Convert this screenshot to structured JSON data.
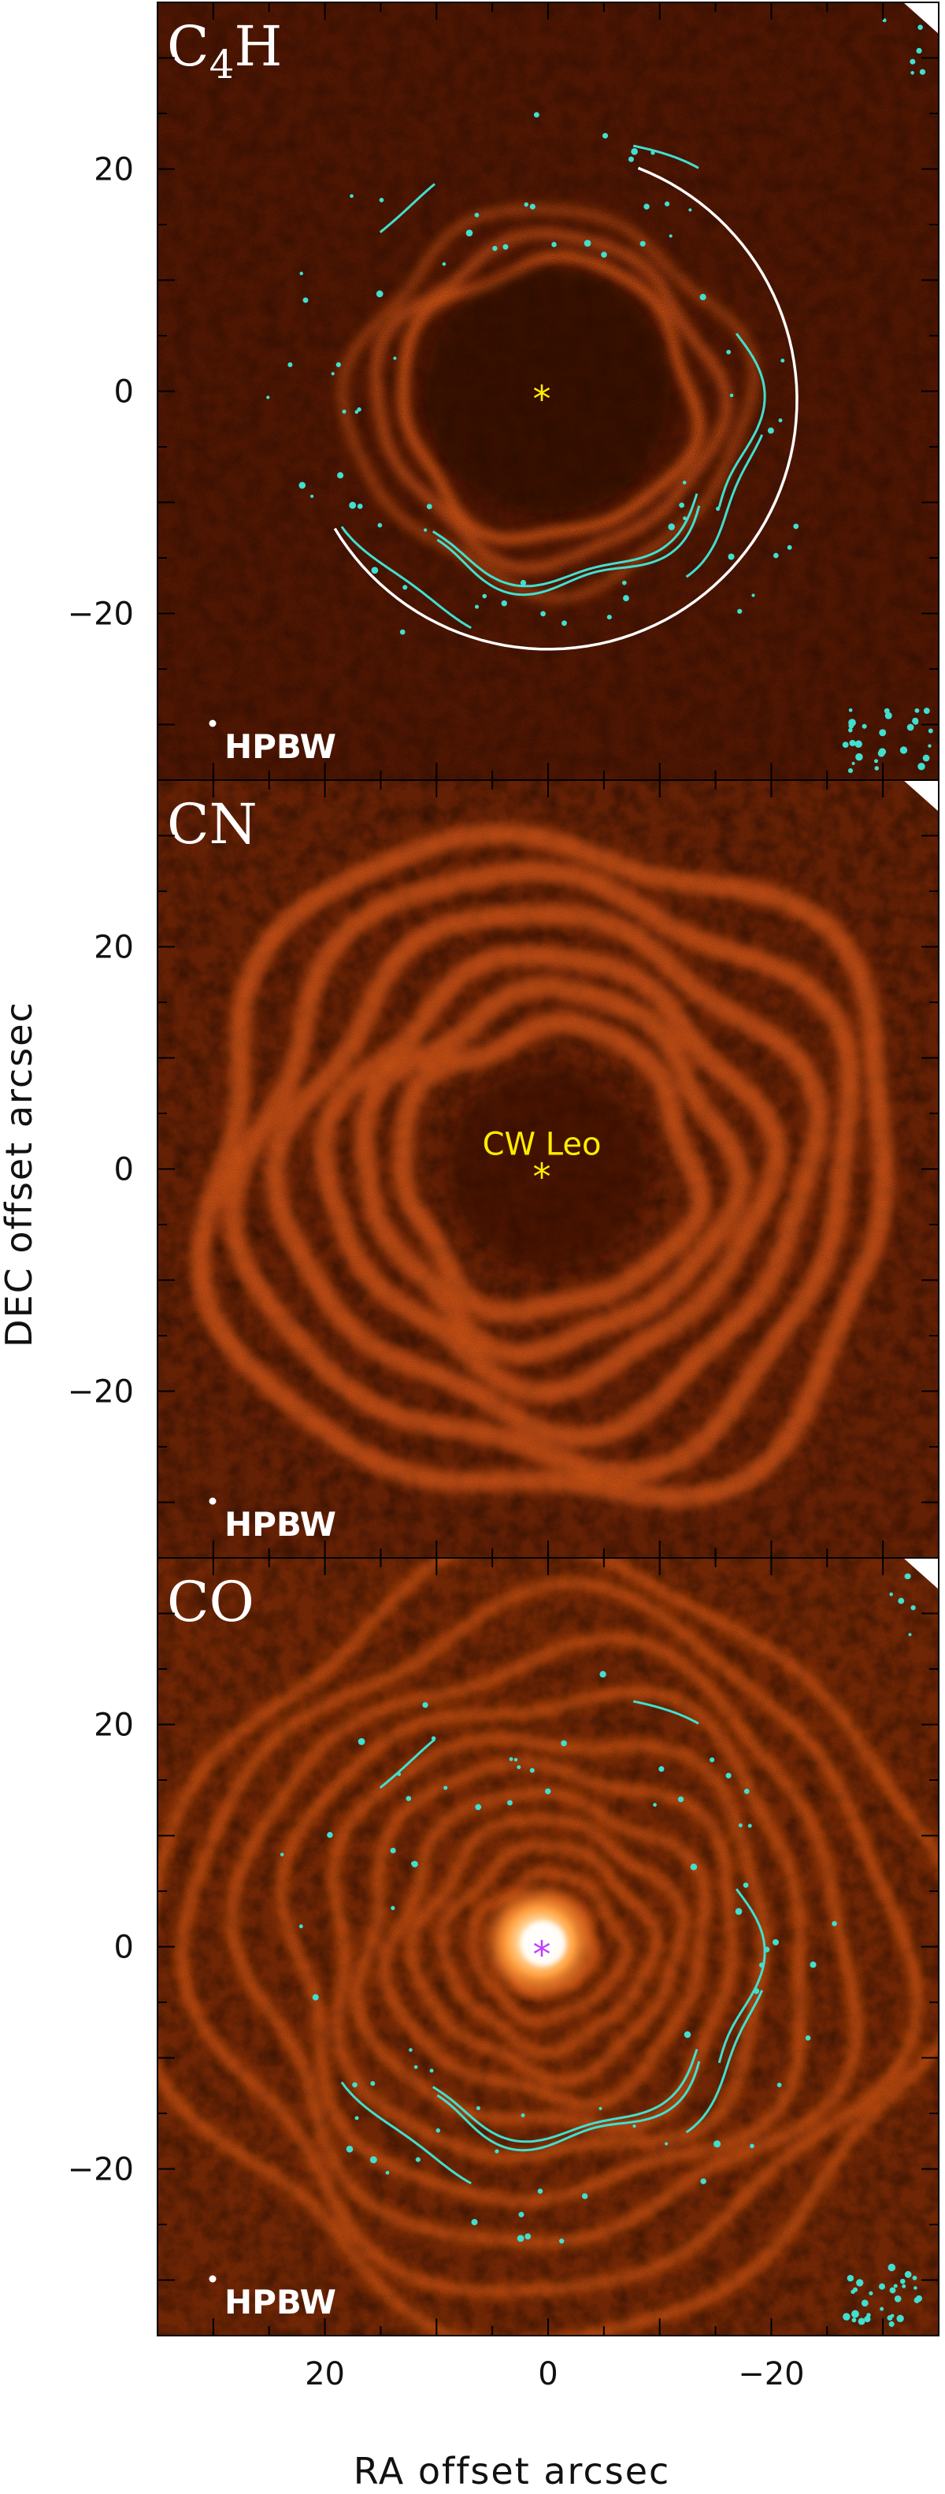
{
  "figure": {
    "xlabel": "RA offset arcsec",
    "ylabel": "DEC offset arcsec",
    "xticks": [
      "20",
      "0",
      "−20"
    ],
    "yticks": [
      "20",
      "0",
      "−20"
    ]
  },
  "panels": [
    {
      "id": "c4h",
      "title_main": "C",
      "title_sub": "4",
      "title_tail": "H",
      "beam_label": "HPBW",
      "has_contours": true,
      "has_fit_arc": true,
      "star_color": "#ffee00",
      "star_label": ""
    },
    {
      "id": "cn",
      "title_main": "CN",
      "title_sub": "",
      "title_tail": "",
      "beam_label": "HPBW",
      "has_contours": false,
      "has_fit_arc": false,
      "star_color": "#ffee00",
      "star_label": "CW Leo"
    },
    {
      "id": "co",
      "title_main": "CO",
      "title_sub": "",
      "title_tail": "",
      "beam_label": "HPBW",
      "has_contours": true,
      "has_fit_arc": false,
      "star_color": "#c040ff",
      "star_label": ""
    }
  ],
  "colors": {
    "map_dark": "#1a0400",
    "map_mid": "#8a2a00",
    "map_bright": "#ff6a1a",
    "map_peak": "#fff0d0",
    "contour": "#40e0d0",
    "fit_arc": "#ffffff"
  },
  "chart_data": {
    "type": "other",
    "xlabel": "RA offset arcsec",
    "ylabel": "DEC offset arcsec",
    "xlim": [
      35,
      -35
    ],
    "ylim": [
      -35,
      35
    ],
    "xticks": [
      20,
      0,
      -20
    ],
    "yticks": [
      20,
      0,
      -20
    ],
    "panels": [
      "C4H",
      "CN",
      "CO"
    ],
    "star_position": [
      0,
      0
    ]
  }
}
